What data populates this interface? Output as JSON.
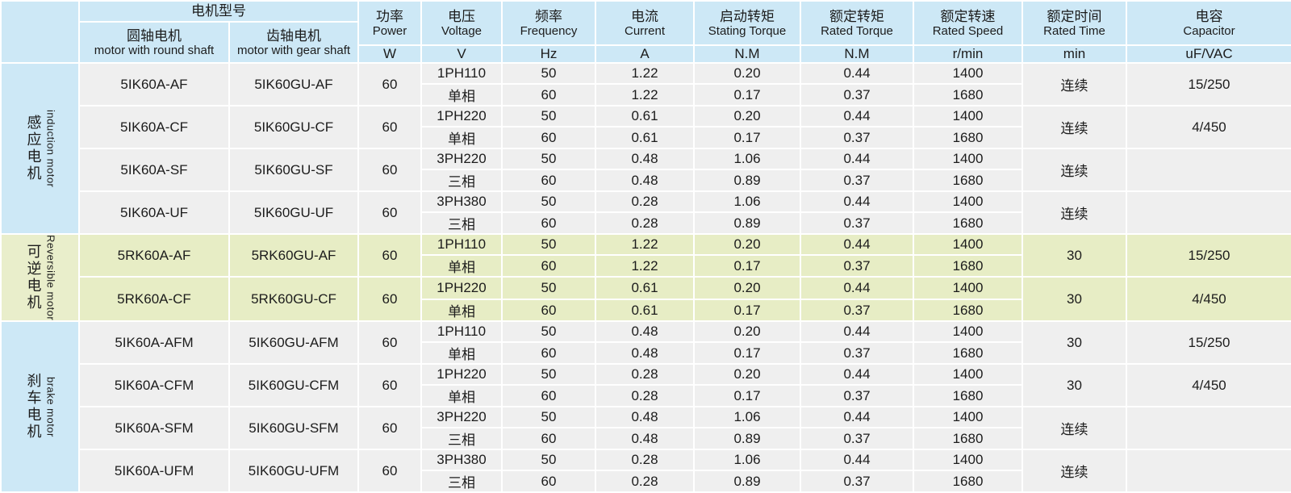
{
  "colors": {
    "header_blue": "#cde8f6",
    "group_green_label": "#e9eecb",
    "row_green": "#e7edc5",
    "row_gray": "#efefef",
    "grid_line": "#ffffff"
  },
  "table": {
    "header": {
      "model_group": "电机型号",
      "round_shaft": {
        "cn": "圆轴电机",
        "en": "motor with round shaft"
      },
      "gear_shaft": {
        "cn": "齿轴电机",
        "en": "motor with gear shaft"
      },
      "cols": [
        {
          "cn": "功率",
          "en": "Power",
          "unit": "W"
        },
        {
          "cn": "电压",
          "en": "Voltage",
          "unit": "V"
        },
        {
          "cn": "频率",
          "en": "Frequency",
          "unit": "Hz"
        },
        {
          "cn": "电流",
          "en": "Current",
          "unit": "A"
        },
        {
          "cn": "启动转矩",
          "en": "Stating Torque",
          "unit": "N.M"
        },
        {
          "cn": "额定转矩",
          "en": "Rated Torque",
          "unit": "N.M"
        },
        {
          "cn": "额定转速",
          "en": "Rated Speed",
          "unit": "r/min"
        },
        {
          "cn": "额定时间",
          "en": "Rated Time",
          "unit": "min"
        },
        {
          "cn": "电容",
          "en": "Capacitor",
          "unit": "uF/VAC"
        }
      ]
    },
    "groups": [
      {
        "id": "induction-motor",
        "label_cn": "感应电机",
        "label_en": "induction motor",
        "theme": "blue",
        "models": [
          {
            "round": "5IK60A-AF",
            "gear": "5IK60GU-AF",
            "power": "60",
            "voltage": "1PH110",
            "phase": "单相",
            "time": "连续",
            "capacitor": "15/250",
            "rows": [
              {
                "freq": "50",
                "current": "1.22",
                "stating": "0.20",
                "torque": "0.44",
                "speed": "1400"
              },
              {
                "freq": "60",
                "current": "1.22",
                "stating": "0.17",
                "torque": "0.37",
                "speed": "1680"
              }
            ]
          },
          {
            "round": "5IK60A-CF",
            "gear": "5IK60GU-CF",
            "power": "60",
            "voltage": "1PH220",
            "phase": "单相",
            "time": "连续",
            "capacitor": "4/450",
            "rows": [
              {
                "freq": "50",
                "current": "0.61",
                "stating": "0.20",
                "torque": "0.44",
                "speed": "1400"
              },
              {
                "freq": "60",
                "current": "0.61",
                "stating": "0.17",
                "torque": "0.37",
                "speed": "1680"
              }
            ]
          },
          {
            "round": "5IK60A-SF",
            "gear": "5IK60GU-SF",
            "power": "60",
            "voltage": "3PH220",
            "phase": "三相",
            "time": "连续",
            "capacitor": "",
            "rows": [
              {
                "freq": "50",
                "current": "0.48",
                "stating": "1.06",
                "torque": "0.44",
                "speed": "1400"
              },
              {
                "freq": "60",
                "current": "0.48",
                "stating": "0.89",
                "torque": "0.37",
                "speed": "1680"
              }
            ]
          },
          {
            "round": "5IK60A-UF",
            "gear": "5IK60GU-UF",
            "power": "60",
            "voltage": "3PH380",
            "phase": "三相",
            "time": "连续",
            "capacitor": "",
            "rows": [
              {
                "freq": "50",
                "current": "0.28",
                "stating": "1.06",
                "torque": "0.44",
                "speed": "1400"
              },
              {
                "freq": "60",
                "current": "0.28",
                "stating": "0.89",
                "torque": "0.37",
                "speed": "1680"
              }
            ]
          }
        ]
      },
      {
        "id": "reversible-motor",
        "label_cn": "可逆电机",
        "label_en": "Reversible motor",
        "theme": "green",
        "models": [
          {
            "round": "5RK60A-AF",
            "gear": "5RK60GU-AF",
            "power": "60",
            "voltage": "1PH110",
            "phase": "单相",
            "time": "30",
            "capacitor": "15/250",
            "rows": [
              {
                "freq": "50",
                "current": "1.22",
                "stating": "0.20",
                "torque": "0.44",
                "speed": "1400"
              },
              {
                "freq": "60",
                "current": "1.22",
                "stating": "0.17",
                "torque": "0.37",
                "speed": "1680"
              }
            ]
          },
          {
            "round": "5RK60A-CF",
            "gear": "5RK60GU-CF",
            "power": "60",
            "voltage": "1PH220",
            "phase": "单相",
            "time": "30",
            "capacitor": "4/450",
            "rows": [
              {
                "freq": "50",
                "current": "0.61",
                "stating": "0.20",
                "torque": "0.44",
                "speed": "1400"
              },
              {
                "freq": "60",
                "current": "0.61",
                "stating": "0.17",
                "torque": "0.37",
                "speed": "1680"
              }
            ]
          }
        ]
      },
      {
        "id": "brake-motor",
        "label_cn": "刹车电机",
        "label_en": "brake motor",
        "theme": "blue",
        "models": [
          {
            "round": "5IK60A-AFM",
            "gear": "5IK60GU-AFM",
            "power": "60",
            "voltage": "1PH110",
            "phase": "单相",
            "time": "30",
            "capacitor": "15/250",
            "rows": [
              {
                "freq": "50",
                "current": "0.48",
                "stating": "0.20",
                "torque": "0.44",
                "speed": "1400"
              },
              {
                "freq": "60",
                "current": "0.48",
                "stating": "0.17",
                "torque": "0.37",
                "speed": "1680"
              }
            ]
          },
          {
            "round": "5IK60A-CFM",
            "gear": "5IK60GU-CFM",
            "power": "60",
            "voltage": "1PH220",
            "phase": "单相",
            "time": "30",
            "capacitor": "4/450",
            "rows": [
              {
                "freq": "50",
                "current": "0.28",
                "stating": "0.20",
                "torque": "0.44",
                "speed": "1400"
              },
              {
                "freq": "60",
                "current": "0.28",
                "stating": "0.17",
                "torque": "0.37",
                "speed": "1680"
              }
            ]
          },
          {
            "round": "5IK60A-SFM",
            "gear": "5IK60GU-SFM",
            "power": "60",
            "voltage": "3PH220",
            "phase": "三相",
            "time": "连续",
            "capacitor": "",
            "rows": [
              {
                "freq": "50",
                "current": "0.48",
                "stating": "1.06",
                "torque": "0.44",
                "speed": "1400"
              },
              {
                "freq": "60",
                "current": "0.48",
                "stating": "0.89",
                "torque": "0.37",
                "speed": "1680"
              }
            ]
          },
          {
            "round": "5IK60A-UFM",
            "gear": "5IK60GU-UFM",
            "power": "60",
            "voltage": "3PH380",
            "phase": "三相",
            "time": "连续",
            "capacitor": "",
            "rows": [
              {
                "freq": "50",
                "current": "0.28",
                "stating": "1.06",
                "torque": "0.44",
                "speed": "1400"
              },
              {
                "freq": "60",
                "current": "0.28",
                "stating": "0.89",
                "torque": "0.37",
                "speed": "1680"
              }
            ]
          }
        ]
      }
    ]
  }
}
